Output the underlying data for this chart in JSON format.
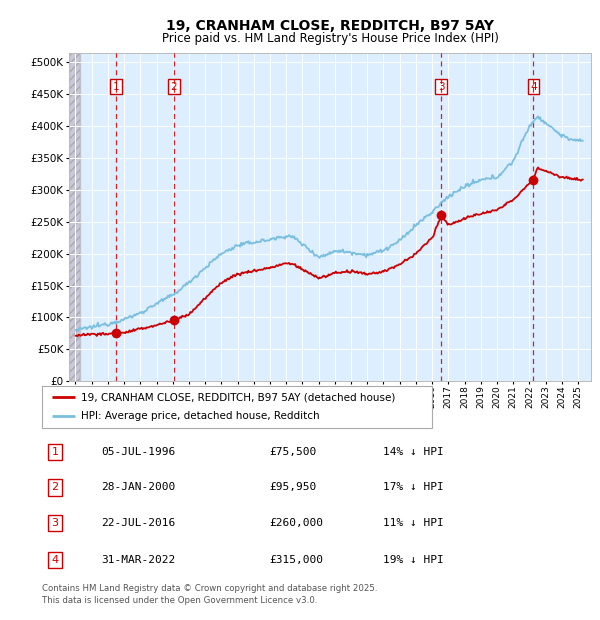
{
  "title": "19, CRANHAM CLOSE, REDDITCH, B97 5AY",
  "subtitle": "Price paid vs. HM Land Registry's House Price Index (HPI)",
  "yvalues": [
    0,
    50000,
    100000,
    150000,
    200000,
    250000,
    300000,
    350000,
    400000,
    450000,
    500000
  ],
  "ylim": [
    0,
    515000
  ],
  "xlim_start": 1993.6,
  "xlim_end": 2025.8,
  "transactions": [
    {
      "num": 1,
      "date": "05-JUL-1996",
      "price": 75500,
      "hpi_diff": "14% ↓ HPI",
      "x_year": 1996.51
    },
    {
      "num": 2,
      "date": "28-JAN-2000",
      "price": 95950,
      "hpi_diff": "17% ↓ HPI",
      "x_year": 2000.07
    },
    {
      "num": 3,
      "date": "22-JUL-2016",
      "price": 260000,
      "hpi_diff": "11% ↓ HPI",
      "x_year": 2016.56
    },
    {
      "num": 4,
      "date": "31-MAR-2022",
      "price": 315000,
      "hpi_diff": "19% ↓ HPI",
      "x_year": 2022.25
    }
  ],
  "legend_line1": "19, CRANHAM CLOSE, REDDITCH, B97 5AY (detached house)",
  "legend_line2": "HPI: Average price, detached house, Redditch",
  "footer": "Contains HM Land Registry data © Crown copyright and database right 2025.\nThis data is licensed under the Open Government Licence v3.0.",
  "line_color_red": "#cc0000",
  "line_color_blue": "#7bbfdf",
  "background_chart": "#ddeeff",
  "grid_color": "#ffffff"
}
